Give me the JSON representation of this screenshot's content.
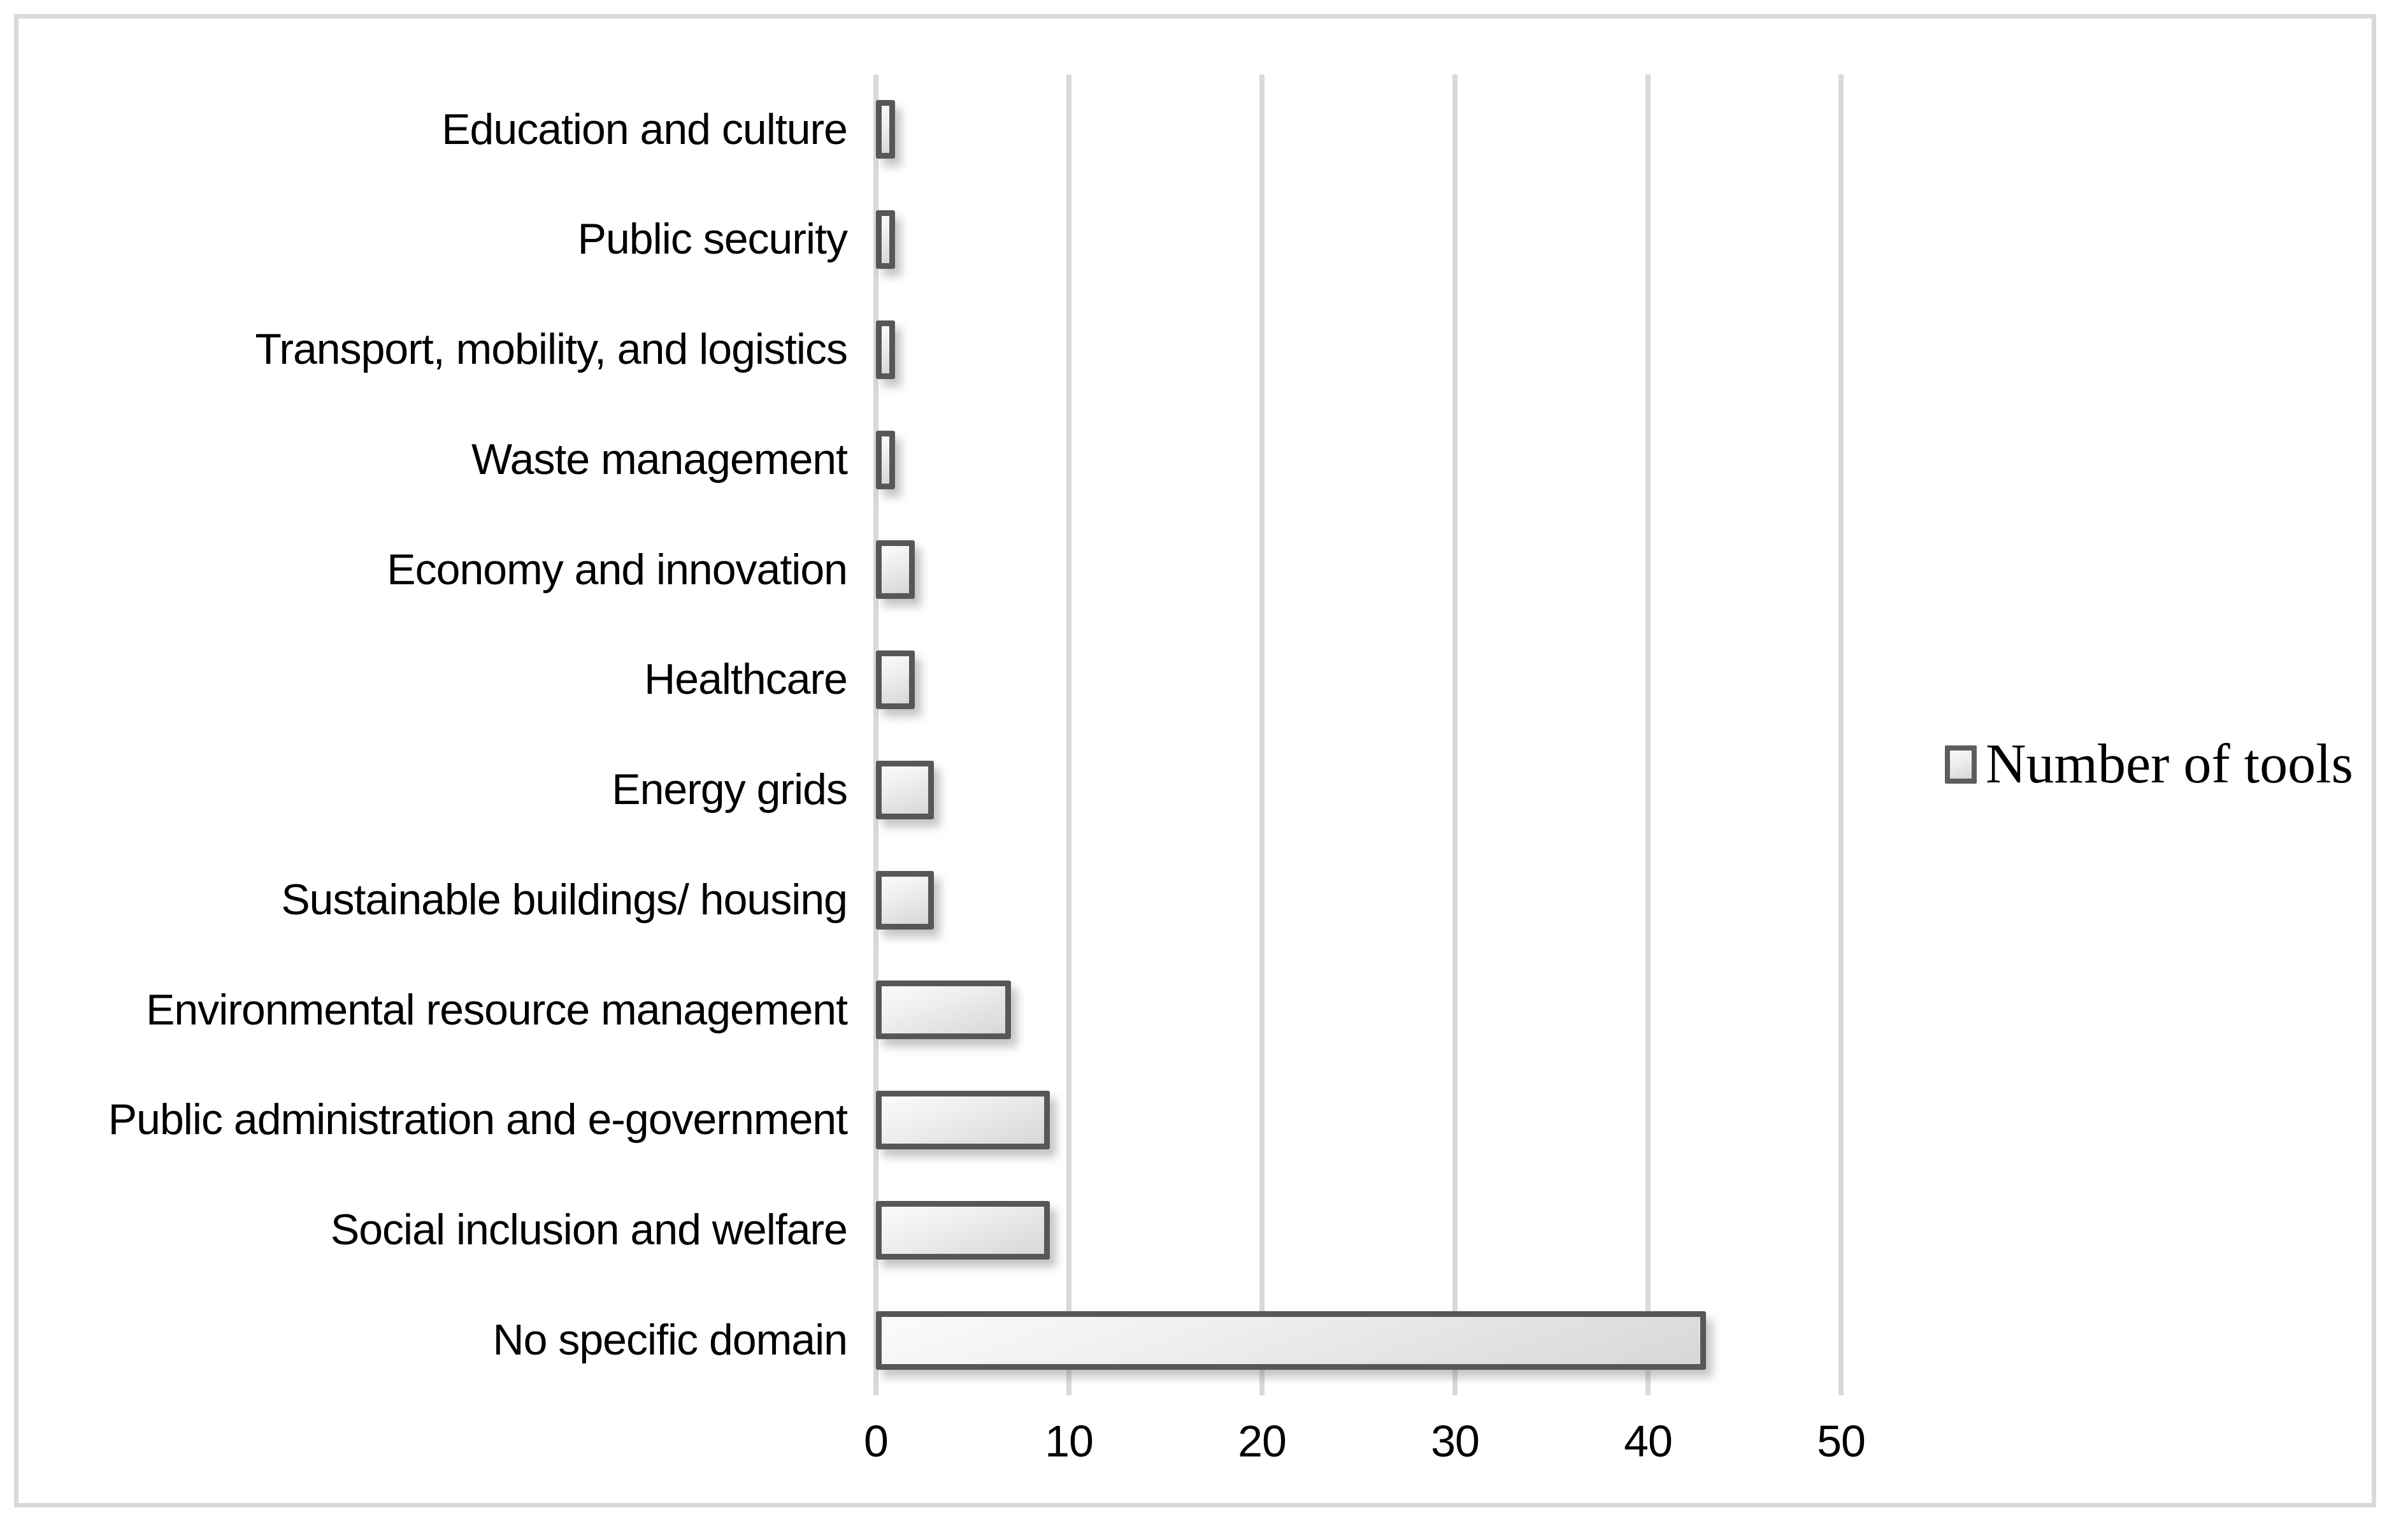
{
  "chart_data": {
    "type": "bar",
    "orientation": "horizontal",
    "title": "",
    "xlabel": "",
    "ylabel": "",
    "categories": [
      "Education and culture",
      "Public security",
      "Transport, mobility, and logistics",
      "Waste management",
      "Economy and innovation",
      "Healthcare",
      "Energy grids",
      "Sustainable buildings/ housing",
      "Environmental resource management",
      "Public administration and e-government",
      "Social inclusion and welfare",
      "No specific domain"
    ],
    "values": [
      1,
      1,
      1,
      1,
      2,
      2,
      3,
      3,
      7,
      9,
      9,
      43
    ],
    "series": [
      {
        "name": "Number of tools",
        "values": [
          1,
          1,
          1,
          1,
          2,
          2,
          3,
          3,
          7,
          9,
          9,
          43
        ]
      }
    ],
    "xlim": [
      0,
      50
    ],
    "x_ticks": [
      "0",
      "10",
      "20",
      "30",
      "40",
      "50"
    ],
    "grid": "vertical-gridlines-on",
    "legend_position": "right",
    "colors": {
      "bar_fill_light": "#fbfbfb",
      "bar_fill_dark": "#d7d7d7",
      "bar_border": "#575757",
      "gridline": "#d9d9d9",
      "figure_border": "#d9d9d9",
      "text": "#000000"
    }
  },
  "legend": {
    "label": "Number of tools"
  }
}
